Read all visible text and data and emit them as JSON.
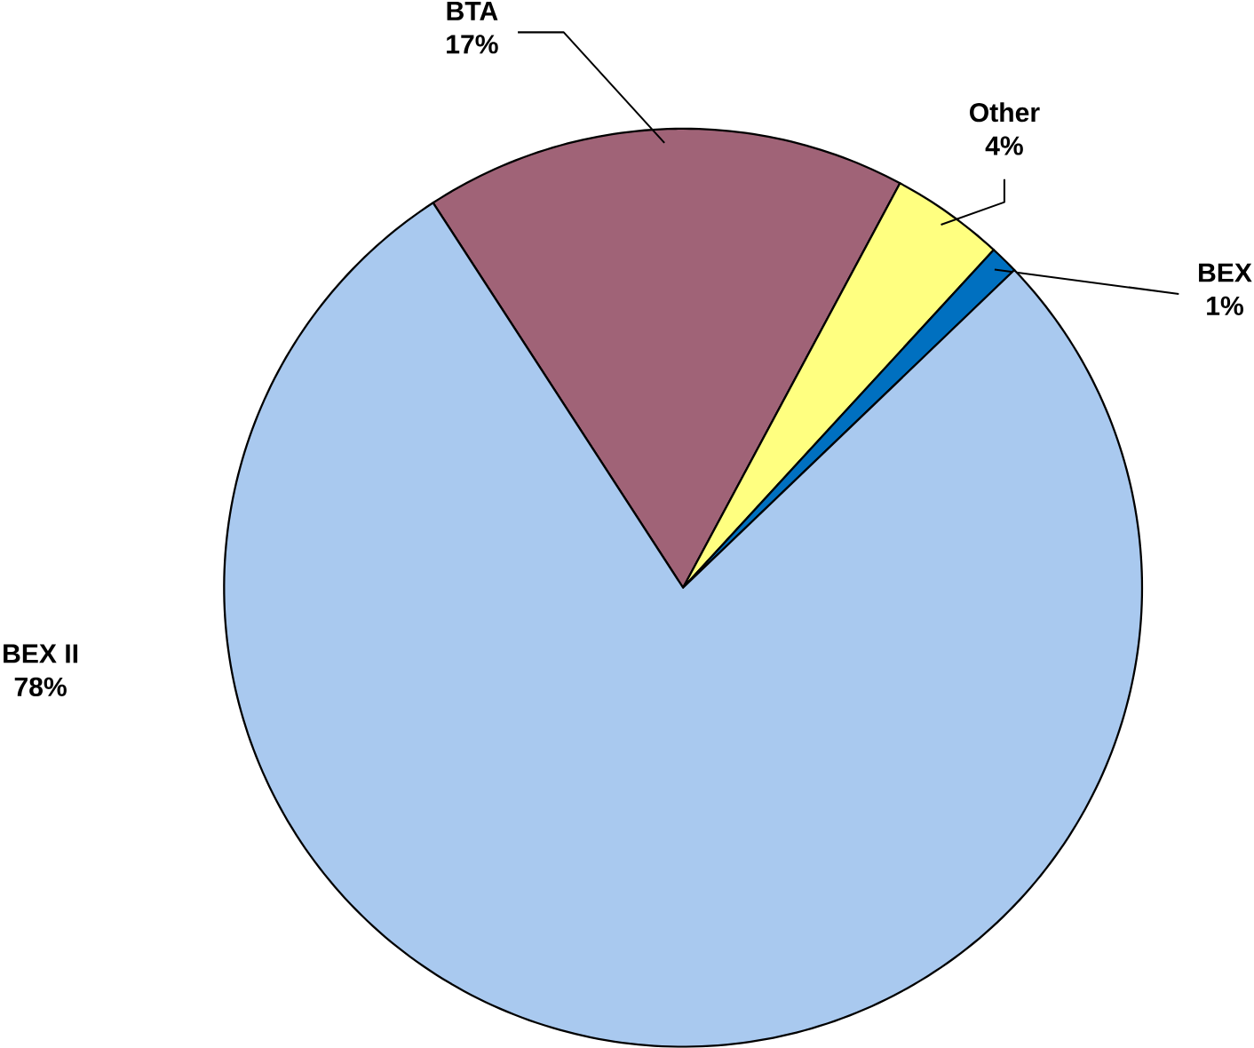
{
  "chart_data": {
    "type": "pie",
    "categories": [
      "BTA",
      "Other",
      "BEX",
      "BEX II"
    ],
    "values": [
      17,
      4,
      1,
      78
    ],
    "value_labels": [
      "17%",
      "4%",
      "1%",
      "78%"
    ],
    "colors": [
      "#a06377",
      "#ffff80",
      "#0070c0",
      "#a9c9ef"
    ]
  }
}
